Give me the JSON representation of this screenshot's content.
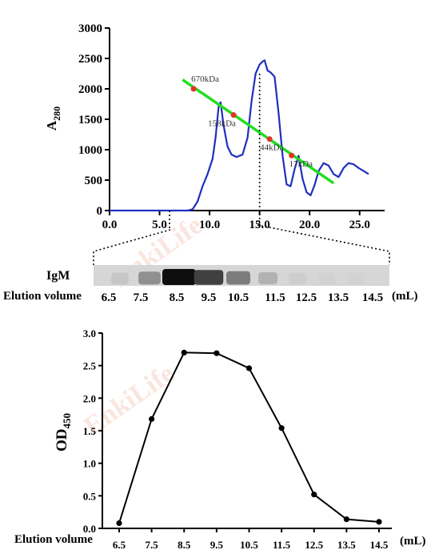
{
  "watermark_text": "EnkiLife",
  "chart_data": [
    {
      "type": "line",
      "ylabel": "A280",
      "ylabel_main": "A",
      "ylabel_sub": "280",
      "xlim": [
        0,
        27.5
      ],
      "ylim": [
        0,
        3000
      ],
      "xticks": [
        "0.0",
        "5.0",
        "10.0",
        "15.0",
        "20.0",
        "25.0"
      ],
      "xtick_values": [
        0,
        5,
        10,
        15,
        20,
        25
      ],
      "yticks": [
        "0",
        "500",
        "1000",
        "1500",
        "2000",
        "2500",
        "3000"
      ],
      "ytick_values": [
        0,
        500,
        1000,
        1500,
        2000,
        2500,
        3000
      ],
      "series": [
        {
          "color": "#1f2fbf",
          "x": [
            0,
            5,
            7.8,
            8.3,
            8.8,
            9.3,
            9.8,
            10.3,
            10.6,
            10.9,
            11.1,
            11.4,
            11.8,
            12.2,
            12.7,
            13.3,
            13.8,
            14.2,
            14.6,
            15.0,
            15.3,
            15.5,
            15.8,
            16.1,
            16.5,
            16.9,
            17.3,
            17.7,
            18.1,
            18.5,
            18.9,
            19.3,
            19.7,
            20.1,
            20.5,
            20.9,
            21.4,
            21.9,
            22.4,
            22.9,
            23.4,
            23.9,
            24.4,
            24.9,
            25.4,
            25.9
          ],
          "y": [
            0,
            0,
            0,
            20,
            150,
            400,
            600,
            850,
            1200,
            1700,
            1780,
            1400,
            1050,
            920,
            880,
            920,
            1200,
            1800,
            2250,
            2400,
            2450,
            2470,
            2300,
            2270,
            2200,
            1600,
            900,
            430,
            400,
            680,
            900,
            520,
            300,
            250,
            420,
            650,
            780,
            740,
            600,
            550,
            700,
            780,
            760,
            700,
            650,
            600
          ]
        },
        {
          "color": "#22dd22",
          "x": [
            7.3,
            22.4
          ],
          "y": [
            2150,
            450
          ]
        }
      ],
      "markers": [
        {
          "label": "670kDa",
          "x": 8.4,
          "y": 2000,
          "color": "#e53323"
        },
        {
          "label": "158kDa",
          "x": 12.4,
          "y": 1570,
          "color": "#e53323"
        },
        {
          "label": "44kDa",
          "x": 16.0,
          "y": 1175,
          "color": "#e53323"
        },
        {
          "label": "17kDa",
          "x": 18.2,
          "y": 905,
          "color": "#e53323"
        }
      ],
      "annotations": [
        {
          "type": "dotted-vline",
          "x": 15.0
        },
        {
          "type": "dotted-vline",
          "x": 6.0
        }
      ]
    },
    {
      "type": "heatmap",
      "title": "IgM",
      "xlabel": "Elution volume",
      "unit": "(mL)",
      "categories": [
        "6.5",
        "7.5",
        "8.5",
        "9.5",
        "10.5",
        "11.5",
        "12.5",
        "13.5",
        "14.5"
      ],
      "values": [
        0.08,
        0.35,
        1.0,
        0.75,
        0.45,
        0.18,
        0.04,
        0.02,
        0.02
      ]
    },
    {
      "type": "line",
      "ylabel": "OD450",
      "ylabel_main": "OD",
      "ylabel_sub": "450",
      "xlabel": "Elution volume",
      "unit": "(mL)",
      "categories": [
        "6.5",
        "7.5",
        "8.5",
        "9.5",
        "10.5",
        "11.5",
        "12.5",
        "13.5",
        "14.5"
      ],
      "values": [
        0.08,
        1.68,
        2.7,
        2.69,
        2.46,
        1.54,
        0.52,
        0.14,
        0.1
      ],
      "ylim": [
        0,
        3.0
      ],
      "yticks": [
        "0.0",
        "0.5",
        "1.0",
        "1.5",
        "2.0",
        "2.5",
        "3.0"
      ],
      "ytick_values": [
        0,
        0.5,
        1.0,
        1.5,
        2.0,
        2.5,
        3.0
      ]
    }
  ]
}
